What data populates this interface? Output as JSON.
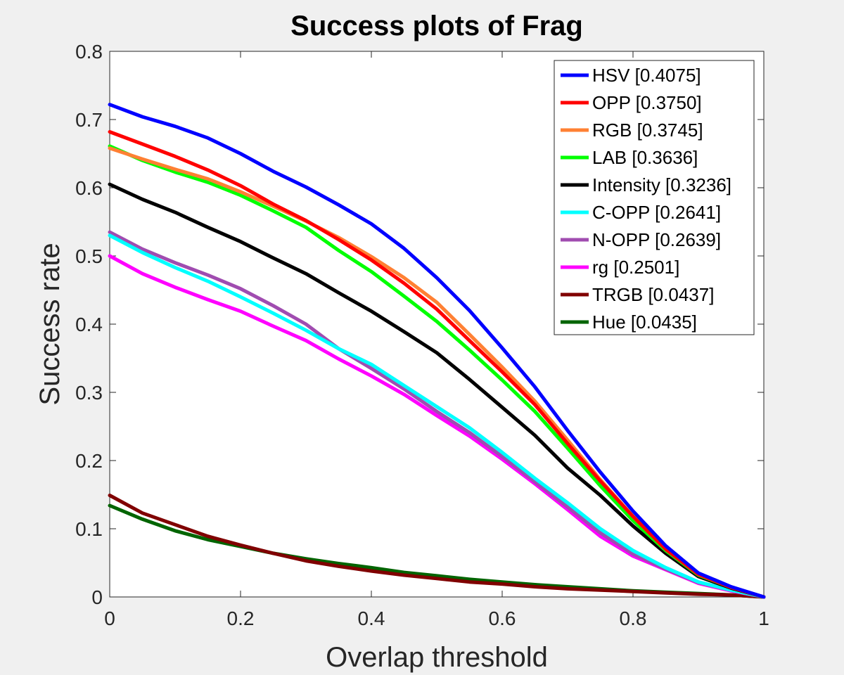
{
  "chart_data": {
    "type": "line",
    "title": "Success plots of Frag",
    "xlabel": "Overlap threshold",
    "ylabel": "Success rate",
    "xlim": [
      0,
      1
    ],
    "ylim": [
      0,
      0.8
    ],
    "xticks": [
      "0",
      "0.2",
      "0.4",
      "0.6",
      "0.8",
      "1"
    ],
    "yticks": [
      "0",
      "0.1",
      "0.2",
      "0.3",
      "0.4",
      "0.5",
      "0.6",
      "0.7",
      "0.8"
    ],
    "grid": false,
    "legend_position": "top-right",
    "x": [
      0,
      0.05,
      0.1,
      0.15,
      0.2,
      0.25,
      0.3,
      0.35,
      0.4,
      0.45,
      0.5,
      0.55,
      0.6,
      0.65,
      0.7,
      0.75,
      0.8,
      0.85,
      0.9,
      0.95,
      1
    ],
    "series": [
      {
        "name": "HSV [0.4075]",
        "color": "#0000ff",
        "values": [
          0.722,
          0.704,
          0.69,
          0.673,
          0.65,
          0.624,
          0.601,
          0.575,
          0.547,
          0.511,
          0.468,
          0.42,
          0.365,
          0.308,
          0.244,
          0.183,
          0.126,
          0.075,
          0.035,
          0.015,
          0
        ]
      },
      {
        "name": "OPP [0.3750]",
        "color": "#ff0000",
        "values": [
          0.682,
          0.664,
          0.646,
          0.626,
          0.603,
          0.576,
          0.552,
          0.524,
          0.494,
          0.46,
          0.422,
          0.376,
          0.33,
          0.282,
          0.225,
          0.17,
          0.118,
          0.07,
          0.033,
          0.014,
          0
        ]
      },
      {
        "name": "RGB [0.3745]",
        "color": "#ff8033",
        "values": [
          0.658,
          0.642,
          0.627,
          0.613,
          0.594,
          0.573,
          0.551,
          0.527,
          0.499,
          0.468,
          0.432,
          0.385,
          0.337,
          0.287,
          0.23,
          0.172,
          0.118,
          0.07,
          0.033,
          0.014,
          0
        ]
      },
      {
        "name": "LAB [0.3636]",
        "color": "#00ff00",
        "values": [
          0.661,
          0.64,
          0.623,
          0.608,
          0.589,
          0.566,
          0.542,
          0.508,
          0.477,
          0.441,
          0.404,
          0.362,
          0.318,
          0.272,
          0.218,
          0.163,
          0.112,
          0.068,
          0.032,
          0.014,
          0
        ]
      },
      {
        "name": "Intensity [0.3236]",
        "color": "#000000",
        "values": [
          0.605,
          0.583,
          0.564,
          0.542,
          0.521,
          0.497,
          0.474,
          0.446,
          0.419,
          0.389,
          0.358,
          0.319,
          0.278,
          0.237,
          0.189,
          0.149,
          0.104,
          0.064,
          0.03,
          0.013,
          0
        ]
      },
      {
        "name": "C-OPP [0.2641]",
        "color": "#00ffff",
        "values": [
          0.53,
          0.505,
          0.483,
          0.463,
          0.44,
          0.416,
          0.391,
          0.364,
          0.341,
          0.31,
          0.279,
          0.248,
          0.212,
          0.174,
          0.138,
          0.1,
          0.068,
          0.043,
          0.022,
          0.01,
          0
        ]
      },
      {
        "name": "N-OPP [0.2639]",
        "color": "#a04cb0",
        "values": [
          0.535,
          0.51,
          0.49,
          0.472,
          0.452,
          0.427,
          0.4,
          0.364,
          0.335,
          0.305,
          0.272,
          0.241,
          0.206,
          0.169,
          0.132,
          0.094,
          0.063,
          0.041,
          0.021,
          0.01,
          0
        ]
      },
      {
        "name": "rg [0.2501]",
        "color": "#ff00ff",
        "values": [
          0.5,
          0.474,
          0.454,
          0.436,
          0.419,
          0.397,
          0.376,
          0.349,
          0.324,
          0.297,
          0.266,
          0.236,
          0.202,
          0.166,
          0.128,
          0.089,
          0.06,
          0.04,
          0.02,
          0.009,
          0
        ]
      },
      {
        "name": "TRGB [0.0437]",
        "color": "#800000",
        "values": [
          0.149,
          0.123,
          0.106,
          0.089,
          0.076,
          0.064,
          0.053,
          0.045,
          0.038,
          0.032,
          0.027,
          0.022,
          0.019,
          0.015,
          0.012,
          0.01,
          0.008,
          0.006,
          0.004,
          0.003,
          0
        ]
      },
      {
        "name": "Hue [0.0435]",
        "color": "#006400",
        "values": [
          0.134,
          0.114,
          0.097,
          0.084,
          0.074,
          0.064,
          0.056,
          0.049,
          0.043,
          0.036,
          0.031,
          0.026,
          0.022,
          0.018,
          0.015,
          0.012,
          0.009,
          0.007,
          0.005,
          0.003,
          0
        ]
      }
    ]
  }
}
